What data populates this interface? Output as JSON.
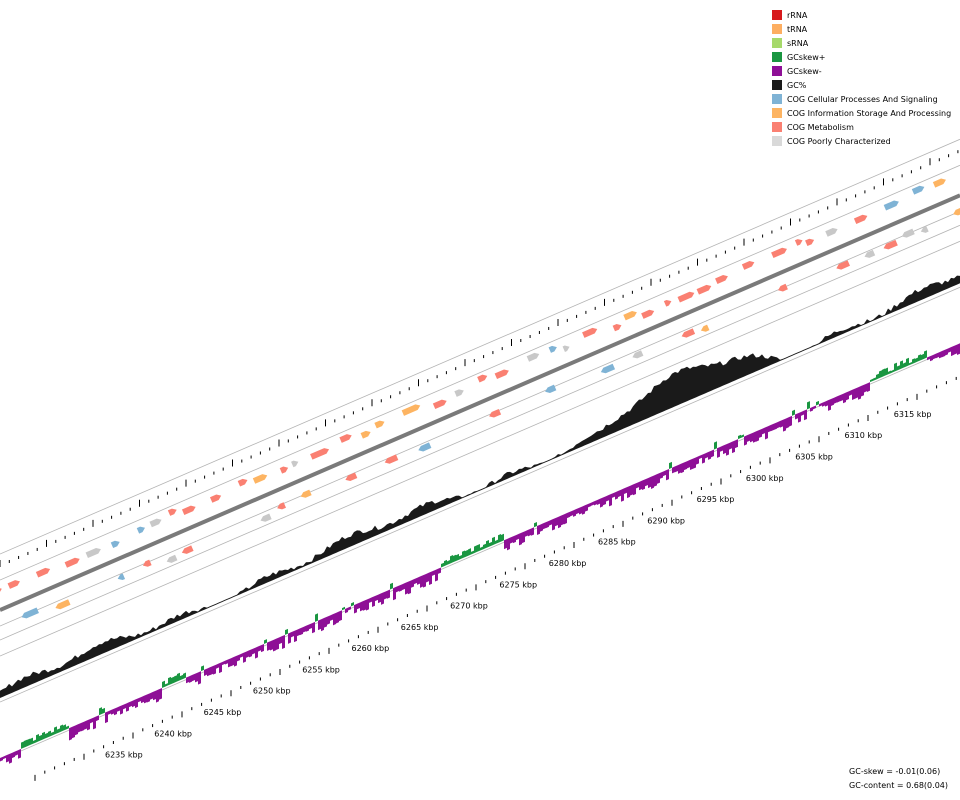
{
  "legend": {
    "items": [
      {
        "label": "rRNA",
        "color": "#d7191c"
      },
      {
        "label": "tRNA",
        "color": "#fdae61"
      },
      {
        "label": "sRNA",
        "color": "#a6d96a"
      },
      {
        "label": "GCskew+",
        "color": "#1a9641"
      },
      {
        "label": "GCskew-",
        "color": "#8e0f96"
      },
      {
        "label": "GC%",
        "color": "#1a1a1a"
      },
      {
        "label": "COG Cellular Processes And Signaling",
        "color": "#7fb3d5"
      },
      {
        "label": "COG Information Storage And Processing",
        "color": "#fdb462"
      },
      {
        "label": "COG Metabolism",
        "color": "#fa8072"
      },
      {
        "label": "COG Poorly Characterized",
        "color": "#d9d9d9"
      }
    ]
  },
  "axis": {
    "tick_labels": [
      "6235 kbp",
      "6240 kbp",
      "6245 kbp",
      "6250 kbp",
      "6255 kbp",
      "6260 kbp",
      "6265 kbp",
      "6270 kbp",
      "6275 kbp",
      "6280 kbp",
      "6285 kbp",
      "6290 kbp",
      "6295 kbp",
      "6300 kbp",
      "6305 kbp",
      "6310 kbp",
      "6315 kbp"
    ]
  },
  "stats": {
    "gc_skew": "GC-skew = -0.01(0.06)",
    "gc_content": "GC-content = 0.68(0.04)"
  },
  "chart_data": {
    "type": "genome-map",
    "visible_range_kbp": [
      6232,
      6319
    ],
    "major_tick_interval_kbp": 5,
    "tracks": [
      "forward CDS (COG)",
      "reverse CDS (COG)",
      "GC%",
      "GC skew"
    ],
    "colors": {
      "backbone": "#7a7a7a",
      "guide": "#b4b4b4",
      "ticks": "#000000"
    }
  }
}
